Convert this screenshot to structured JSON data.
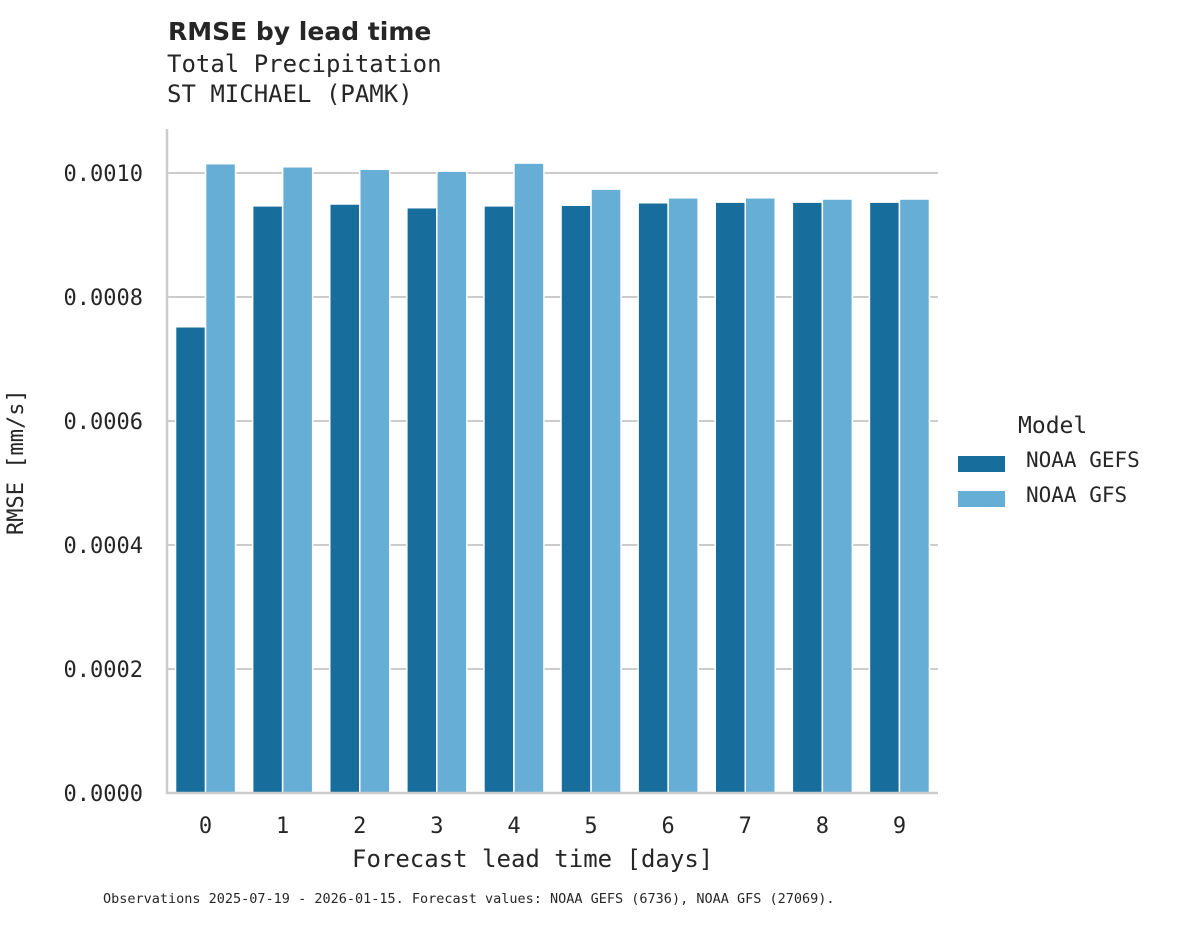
{
  "header": {
    "title": "RMSE by lead time",
    "subtitle_1": "Total Precipitation",
    "subtitle_2": "ST MICHAEL (PAMK)"
  },
  "axes": {
    "ylabel": "RMSE [mm/s]",
    "xlabel": "Forecast lead time [days]",
    "yticks": [
      "0.0000",
      "0.0002",
      "0.0004",
      "0.0006",
      "0.0008",
      "0.0010"
    ],
    "xticks": [
      "0",
      "1",
      "2",
      "3",
      "4",
      "5",
      "6",
      "7",
      "8",
      "9"
    ]
  },
  "legend": {
    "title": "Model",
    "items": [
      {
        "label": "NOAA GEFS",
        "color": "#176d9c"
      },
      {
        "label": "NOAA GFS",
        "color": "#67aed6"
      }
    ]
  },
  "footer": "Observations 2025-07-19 - 2026-01-15. Forecast values: NOAA GEFS (6736), NOAA GFS (27069).",
  "chart_data": {
    "type": "bar",
    "title": "RMSE by lead time",
    "subtitle": "Total Precipitation / ST MICHAEL (PAMK)",
    "xlabel": "Forecast lead time [days]",
    "ylabel": "RMSE [mm/s]",
    "categories": [
      "0",
      "1",
      "2",
      "3",
      "4",
      "5",
      "6",
      "7",
      "8",
      "9"
    ],
    "series": [
      {
        "name": "NOAA GEFS",
        "color": "#176d9c",
        "values": [
          0.000752,
          0.000947,
          0.00095,
          0.000944,
          0.000947,
          0.000948,
          0.000952,
          0.000953,
          0.000953,
          0.000953
        ]
      },
      {
        "name": "NOAA GFS",
        "color": "#67aed6",
        "values": [
          0.001015,
          0.00101,
          0.001006,
          0.001003,
          0.001016,
          0.000974,
          0.00096,
          0.00096,
          0.000958,
          0.000958
        ]
      }
    ],
    "ylim": [
      0,
      0.00107
    ],
    "yticks": [
      0,
      0.0002,
      0.0004,
      0.0006,
      0.0008,
      0.001
    ],
    "grid": "horizontal",
    "legend_position": "right",
    "legend_title": "Model"
  }
}
